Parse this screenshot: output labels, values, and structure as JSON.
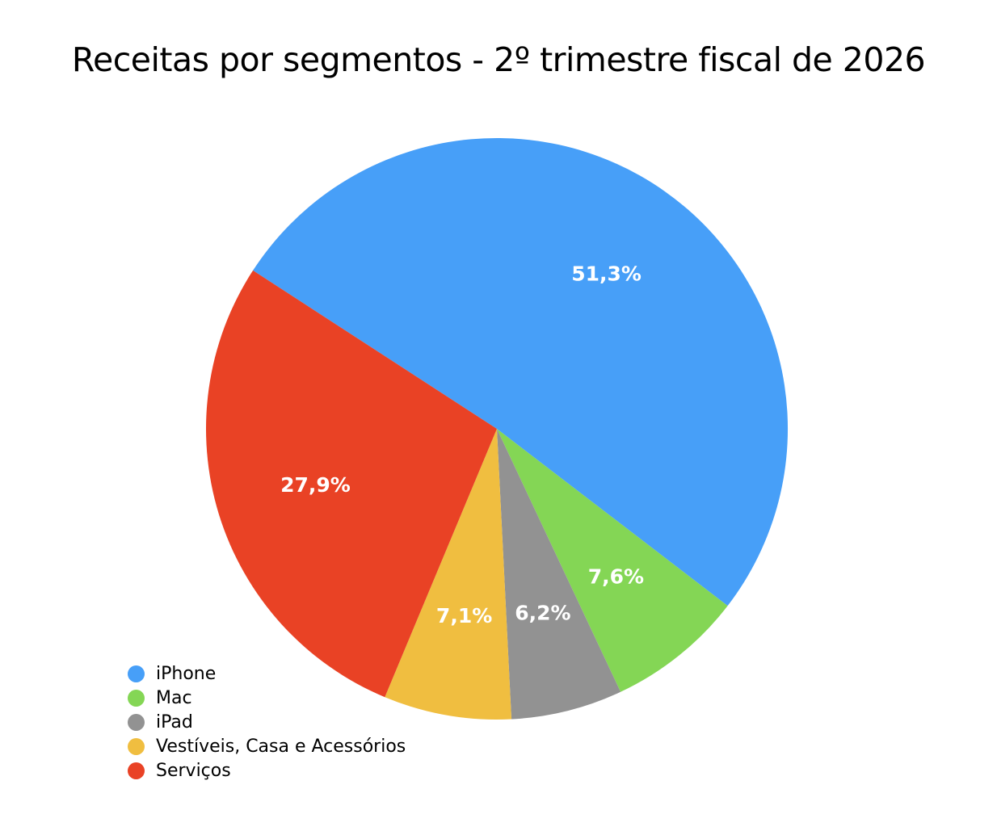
{
  "chart_data": {
    "type": "pie",
    "title": "Receitas por segmentos - 2º trimestre fiscal de 2026",
    "start_angle_deg": -147,
    "legend_position": "bottom-left",
    "slices": [
      {
        "name": "iPhone",
        "value": 51.3,
        "label": "51,3%",
        "color": "#479ff8"
      },
      {
        "name": "Mac",
        "value": 7.6,
        "label": "7,6%",
        "color": "#84d655"
      },
      {
        "name": "iPad",
        "value": 6.2,
        "label": "6,2%",
        "color": "#929292"
      },
      {
        "name": "Vestíveis, Casa e Acessórios",
        "value": 7.1,
        "label": "7,1%",
        "color": "#f0be40"
      },
      {
        "name": "Serviços",
        "value": 27.9,
        "label": "27,9%",
        "color": "#e94225"
      }
    ]
  }
}
